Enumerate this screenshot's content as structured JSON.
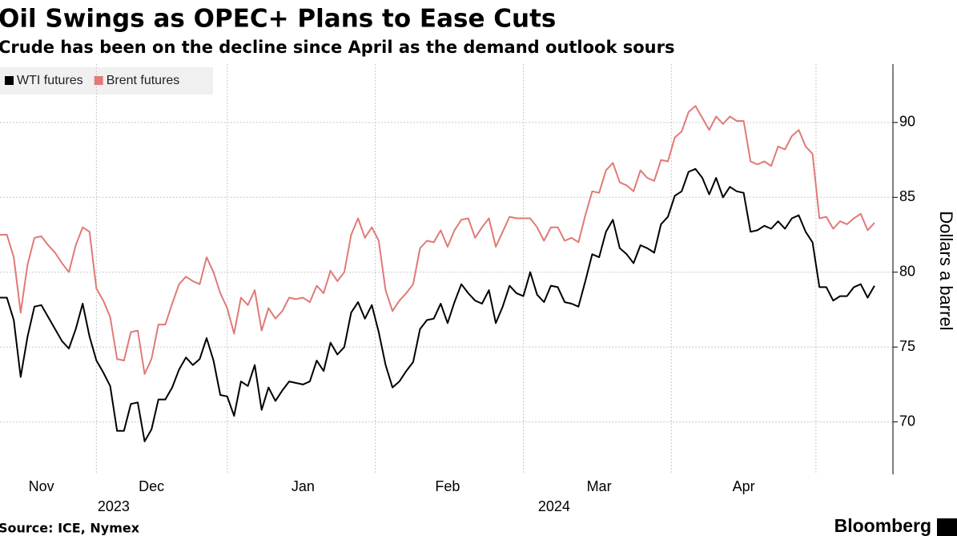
{
  "chart_data": {
    "type": "line",
    "title": "Oil Swings as OPEC+ Plans to Ease Cuts",
    "subtitle": "Crude has been on the decline since April as the demand outlook sours",
    "y_axis_label": "Dollars a barrel",
    "source": "Source: ICE, Nymex",
    "brand": "Bloomberg",
    "legend": "top-left",
    "grid": true,
    "categories": [
      null,
      null,
      null,
      null,
      null,
      null,
      "Nov",
      null,
      null,
      null,
      null,
      null,
      null,
      null,
      null,
      null,
      null,
      null,
      null,
      null,
      null,
      null,
      "Dec",
      null,
      null,
      null,
      null,
      null,
      null,
      null,
      null,
      null,
      null,
      null,
      null,
      null,
      null,
      null,
      null,
      null,
      null,
      null,
      null,
      null,
      "Jan",
      null,
      null,
      null,
      null,
      null,
      null,
      null,
      null,
      null,
      null,
      null,
      null,
      null,
      null,
      null,
      null,
      null,
      null,
      null,
      null,
      "Feb",
      null,
      null,
      null,
      null,
      null,
      null,
      null,
      null,
      null,
      null,
      null,
      null,
      null,
      null,
      null,
      null,
      null,
      null,
      null,
      null,
      null,
      "Mar",
      null,
      null,
      null,
      null,
      null,
      null,
      null,
      null,
      null,
      null,
      null,
      null,
      null,
      null,
      null,
      null,
      null,
      null,
      null,
      null,
      "Apr",
      null,
      null,
      null,
      null,
      null,
      null,
      null,
      null,
      null,
      null,
      null,
      null,
      null,
      null,
      null,
      null,
      null,
      null,
      null
    ],
    "years": [
      "2023",
      "2024"
    ],
    "ylim": [
      66.5,
      93.9
    ],
    "yticks": [
      70,
      75,
      80,
      85,
      90
    ],
    "series": [
      {
        "name": "WTI futures",
        "color": "#000000",
        "values": [
          78.3,
          78.3,
          76.8,
          73.0,
          75.7,
          77.7,
          77.8,
          77.0,
          76.2,
          75.4,
          74.9,
          76.2,
          77.9,
          75.7,
          74.1,
          73.3,
          72.4,
          69.4,
          69.4,
          71.2,
          71.3,
          68.7,
          69.5,
          71.5,
          71.5,
          72.3,
          73.5,
          74.3,
          73.8,
          74.2,
          75.6,
          74.1,
          71.8,
          71.7,
          70.4,
          72.7,
          72.4,
          73.8,
          70.8,
          72.3,
          71.4,
          72.1,
          72.7,
          72.6,
          72.5,
          72.7,
          74.1,
          73.4,
          75.3,
          74.5,
          75.0,
          77.3,
          78.0,
          76.9,
          77.8,
          76.0,
          73.8,
          72.3,
          72.7,
          73.4,
          74.0,
          76.2,
          76.8,
          76.9,
          77.9,
          76.6,
          78.0,
          79.2,
          78.6,
          78.1,
          77.9,
          78.8,
          76.6,
          77.7,
          79.1,
          78.6,
          78.4,
          80.0,
          78.5,
          78.0,
          79.1,
          79.0,
          78.0,
          77.9,
          77.7,
          79.4,
          81.2,
          81.0,
          82.7,
          83.5,
          81.6,
          81.2,
          80.6,
          81.8,
          81.6,
          81.3,
          83.2,
          83.7,
          85.1,
          85.4,
          86.7,
          86.9,
          86.3,
          85.2,
          86.3,
          85.0,
          85.7,
          85.4,
          85.3,
          82.7,
          82.8,
          83.1,
          82.9,
          83.4,
          82.9,
          83.6,
          83.8,
          82.7,
          82.0,
          79.0,
          79.0,
          78.1,
          78.4,
          78.4,
          79.0,
          79.2,
          78.3,
          79.1
        ]
      },
      {
        "name": "Brent futures",
        "color": "#e07a77",
        "values": [
          82.5,
          82.5,
          81.0,
          77.3,
          80.5,
          82.3,
          82.4,
          81.8,
          81.3,
          80.6,
          80.0,
          81.8,
          83.0,
          82.7,
          78.9,
          78.1,
          77.0,
          74.2,
          74.1,
          76.0,
          76.1,
          73.2,
          74.2,
          76.5,
          76.5,
          77.9,
          79.2,
          79.7,
          79.4,
          79.2,
          81.0,
          80.0,
          78.6,
          77.6,
          75.9,
          78.3,
          77.8,
          78.8,
          76.1,
          77.6,
          76.9,
          77.4,
          78.3,
          78.2,
          78.3,
          78.0,
          79.1,
          78.6,
          80.1,
          79.4,
          80.0,
          82.5,
          83.6,
          82.3,
          83.0,
          82.1,
          78.8,
          77.4,
          78.1,
          78.6,
          79.2,
          81.6,
          82.1,
          82.0,
          82.8,
          81.7,
          82.8,
          83.5,
          83.6,
          82.3,
          83.0,
          83.6,
          81.7,
          82.7,
          83.7,
          83.6,
          83.6,
          83.6,
          83.0,
          82.1,
          83.0,
          83.0,
          82.1,
          82.3,
          82.0,
          83.8,
          85.4,
          85.3,
          86.8,
          87.3,
          86.0,
          85.8,
          85.4,
          86.8,
          86.3,
          86.1,
          87.5,
          87.4,
          89.0,
          89.4,
          90.7,
          91.1,
          90.3,
          89.5,
          90.4,
          89.9,
          90.4,
          90.1,
          90.1,
          87.4,
          87.2,
          87.4,
          87.1,
          88.4,
          88.2,
          89.1,
          89.5,
          88.4,
          87.9,
          83.6,
          83.7,
          82.9,
          83.4,
          83.2,
          83.6,
          83.9,
          82.8,
          83.3
        ]
      }
    ]
  }
}
